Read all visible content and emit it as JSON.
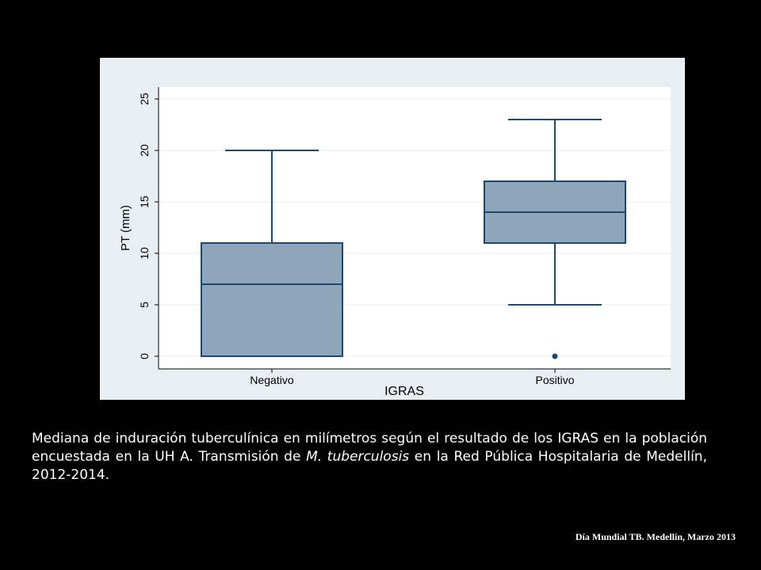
{
  "chart_data": {
    "type": "box",
    "xlabel": "IGRAS",
    "ylabel": "PT (mm)",
    "ylim": [
      -1,
      25.5
    ],
    "yticks": [
      0,
      5,
      10,
      15,
      20,
      25
    ],
    "grid": true,
    "colors": {
      "plot_bg": "#ffffff",
      "frame_bg": "#e8eef4",
      "box_fill": "#8fa5ba",
      "box_stroke": "#1a4a72",
      "grid": "#e6edf3",
      "axis": "#000000"
    },
    "groups": [
      {
        "label": "Negativo",
        "whisker_low": 0,
        "q1": 0,
        "median": 7,
        "q3": 11,
        "whisker_high": 20,
        "outliers": []
      },
      {
        "label": "Positivo",
        "whisker_low": 5,
        "q1": 11,
        "median": 14,
        "q3": 17,
        "whisker_high": 23,
        "outliers": [
          0
        ]
      }
    ]
  },
  "caption": {
    "part1": "Mediana de induración tuberculínica en milímetros según el resultado de los IGRAS en la población encuestada en la UH A. Transmisión de ",
    "italic": "M. tuberculosis",
    "part2": " en la Red Pública Hospitalaria de Medellín, 2012-2014."
  },
  "footer": "Día Mundial TB. Medellín, Marzo 2013"
}
